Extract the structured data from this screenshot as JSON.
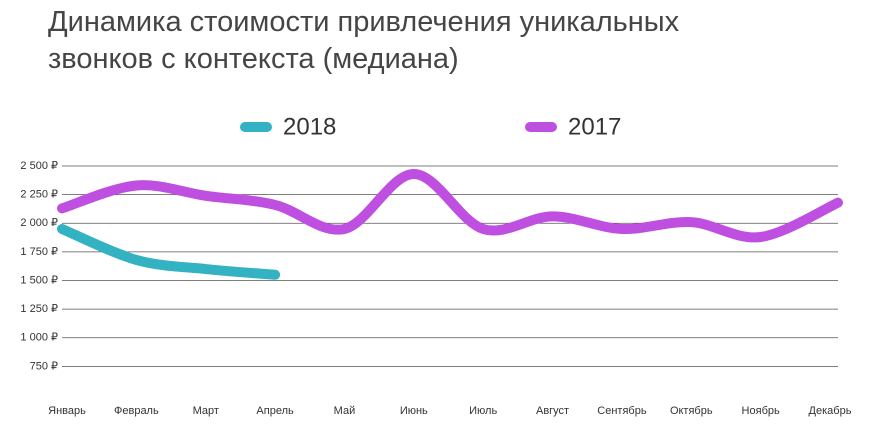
{
  "chart_data": {
    "type": "line",
    "title": "Динамика стоимости привлечения уникальных звонков с контекста (медиана)",
    "categories": [
      "Январь",
      "Февраль",
      "Март",
      "Апрель",
      "Май",
      "Июнь",
      "Июль",
      "Август",
      "Сентябрь",
      "Октябрь",
      "Ноябрь",
      "Декабрь"
    ],
    "series": [
      {
        "name": "2018",
        "color": "#33b2c2",
        "values": [
          1950,
          1680,
          1600,
          1550,
          null,
          null,
          null,
          null,
          null,
          null,
          null,
          null
        ]
      },
      {
        "name": "2017",
        "color": "#bf4fe0",
        "values": [
          2130,
          2330,
          2240,
          2160,
          1950,
          2430,
          1950,
          2060,
          1950,
          2010,
          1880,
          2180
        ]
      }
    ],
    "ylim": [
      500,
      2500
    ],
    "yticks": [
      {
        "value": 750,
        "label": "750 ₽"
      },
      {
        "value": 1000,
        "label": "1 000 ₽"
      },
      {
        "value": 1250,
        "label": "1 250 ₽"
      },
      {
        "value": 1500,
        "label": "1 500 ₽"
      },
      {
        "value": 1750,
        "label": "1 750 ₽"
      },
      {
        "value": 2000,
        "label": "2 000 ₽"
      },
      {
        "value": 2250,
        "label": "2 250 ₽"
      },
      {
        "value": 2500,
        "label": "2 500 ₽"
      }
    ],
    "grid": true,
    "smooth": true,
    "legend": "top"
  }
}
